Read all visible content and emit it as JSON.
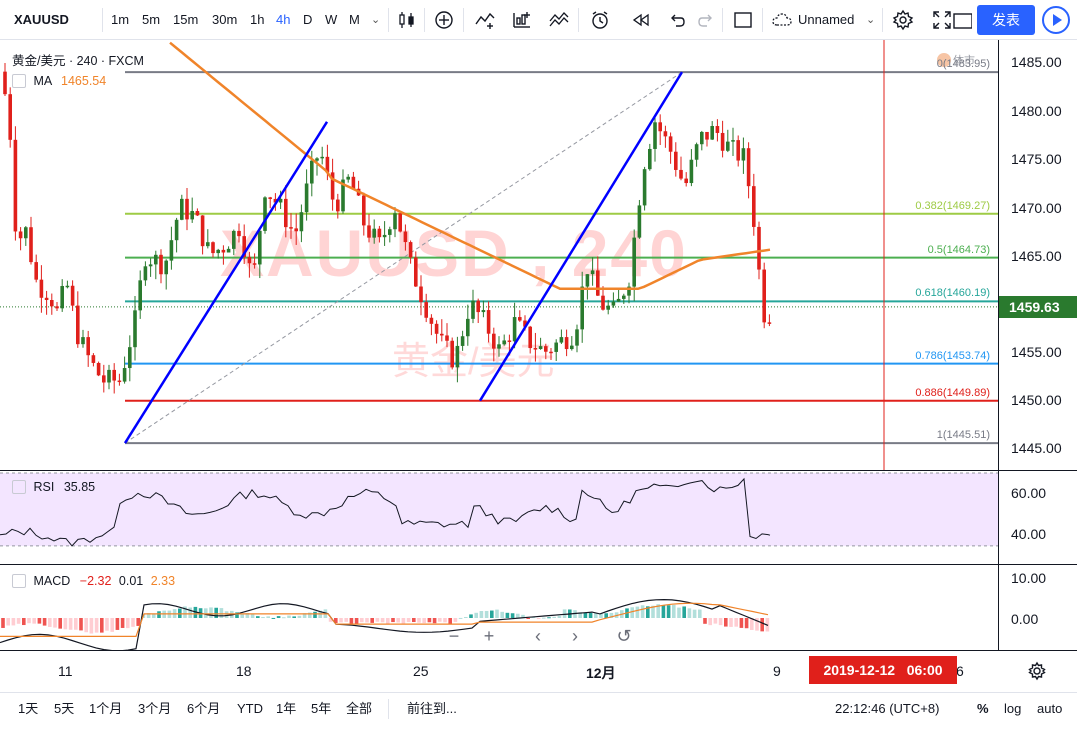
{
  "toolbar": {
    "symbol": "XAUUSD",
    "intervals": [
      "1m",
      "5m",
      "15m",
      "30m",
      "1h",
      "4h",
      "D",
      "W",
      "M"
    ],
    "active_interval": "4h",
    "layout_name": "Unnamed",
    "publish_label": "发表"
  },
  "main_pane": {
    "title": "黄金/美元 · 240 · FXCM",
    "ma_label": "MA",
    "ma_value": "1465.54",
    "hide_label": "体市",
    "watermark": "XAUUSD , 240",
    "watermark_sub": "黄金/美元"
  },
  "price_axis": {
    "labels": [
      "1485.00",
      "1480.00",
      "1475.00",
      "1470.00",
      "1465.00",
      "1460.00",
      "1455.00",
      "1450.00",
      "1445.00"
    ],
    "current_price": "1459.63"
  },
  "fib_levels": [
    {
      "ratio": "0",
      "price": "1483.95",
      "label": "0(1483.95)",
      "color": "#787b86"
    },
    {
      "ratio": "0.382",
      "price": "1469.27",
      "label": "0.382(1469.27)",
      "color": "#9ecb45"
    },
    {
      "ratio": "0.5",
      "price": "1464.73",
      "label": "0.5(1464.73)",
      "color": "#4caf50"
    },
    {
      "ratio": "0.618",
      "price": "1460.19",
      "label": "0.618(1460.19)",
      "color": "#26a69a"
    },
    {
      "ratio": "0.786",
      "price": "1453.74",
      "label": "0.786(1453.74)",
      "color": "#2196f3"
    },
    {
      "ratio": "0.886",
      "price": "1449.89",
      "label": "0.886(1449.89)",
      "color": "#e0201b"
    },
    {
      "ratio": "1",
      "price": "1445.51",
      "label": "1(1445.51)",
      "color": "#787b86"
    }
  ],
  "rsi_pane": {
    "label": "RSI",
    "value": "35.85",
    "axis_labels": [
      "60.00",
      "40.00"
    ]
  },
  "macd_pane": {
    "label": "MACD",
    "macd": "−2.32",
    "signal": "0.01",
    "hist": "2.33",
    "axis_labels": [
      "10.00",
      "0.00"
    ]
  },
  "time_axis": {
    "labels": [
      "11",
      "18",
      "25",
      "12月",
      "9",
      "6"
    ],
    "crosshair_date": "2019-12-12",
    "crosshair_time": "06:00"
  },
  "bottom_bar": {
    "ranges": [
      "1天",
      "5天",
      "1个月",
      "3个月",
      "6个月",
      "YTD",
      "1年",
      "5年",
      "全部"
    ],
    "goto_label": "前往到...",
    "clock": "22:12:46 (UTC+8)",
    "percent_label": "%",
    "log_label": "log",
    "auto_label": "auto"
  },
  "colors": {
    "up": "#2a7a2e",
    "down": "#e0201b",
    "ma": "#f0842a",
    "trend": "#0000ff",
    "rsi_bg": "#f3e5ff",
    "accent": "#2962ff"
  },
  "chart_data": {
    "type": "candlestick",
    "ma_series_name": "MA",
    "y_range": [
      1443,
      1487
    ],
    "fib_range": [
      1445.51,
      1483.95
    ],
    "last_close": 1459.63,
    "ma_last": 1465.54,
    "candles": [],
    "rsi_last": 35.85,
    "rsi_range": [
      25,
      70
    ],
    "macd_last": {
      "macd": -2.32,
      "signal": 0.01,
      "hist": 2.33
    },
    "macd_range": [
      -10,
      12
    ]
  }
}
